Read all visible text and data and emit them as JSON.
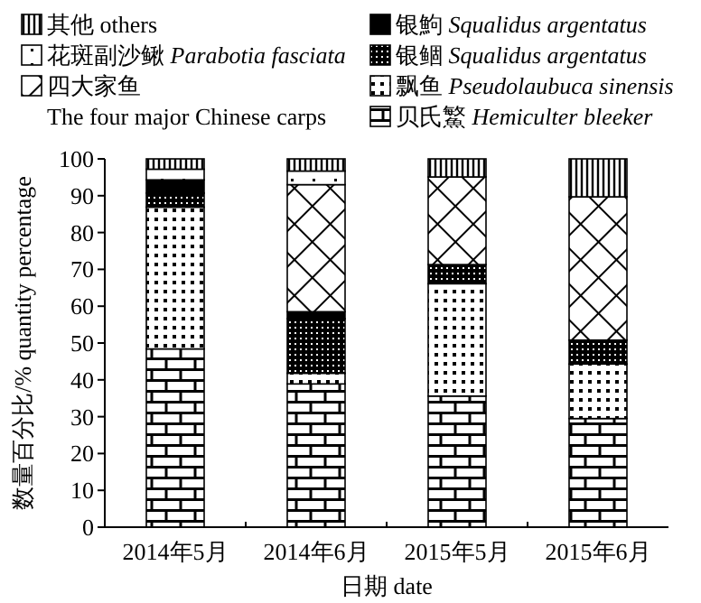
{
  "chart_data": {
    "type": "bar",
    "stacked": true,
    "categories": [
      "2014年5月",
      "2014年6月",
      "2015年5月",
      "2015年6月"
    ],
    "xlabel": "日期 date",
    "ylabel": "数量百分比/% quantity percentage",
    "ylim": [
      0,
      100
    ],
    "yticks": [
      0,
      10,
      20,
      30,
      40,
      50,
      60,
      70,
      80,
      90,
      100
    ],
    "grid": false,
    "legend": "top",
    "series": [
      {
        "name": "贝氏鰵 *Hemiculter bleeker*",
        "color": "#000000",
        "values": [
          48.4,
          38.9,
          35.6,
          29.5
        ]
      },
      {
        "name": "飘鱼 *Pseudolaubuca sinensis*",
        "color": "#000000",
        "values": [
          38.5,
          2.9,
          30.5,
          14.8
        ]
      },
      {
        "name": "银鲴 *Squalidus argentatus*",
        "color": "#000000",
        "values": [
          3.8,
          14.8,
          5.2,
          6.5
        ]
      },
      {
        "name": "银鮈 *Squalidus argentatus*",
        "color": "#000000",
        "values": [
          3.6,
          1.9,
          0,
          0
        ]
      },
      {
        "name": "四大家鱼 The four major Chinese carps",
        "color": "#000000",
        "values": [
          0,
          34.5,
          23.8,
          38.9
        ]
      },
      {
        "name": "花斑副沙鳅 *Parabotia fasciata*",
        "color": "#000000",
        "values": [
          2.9,
          3.7,
          0,
          0
        ]
      },
      {
        "name": "其他 others",
        "color": "#000000",
        "values": [
          2.8,
          3.3,
          4.9,
          10.3
        ]
      }
    ]
  }
}
